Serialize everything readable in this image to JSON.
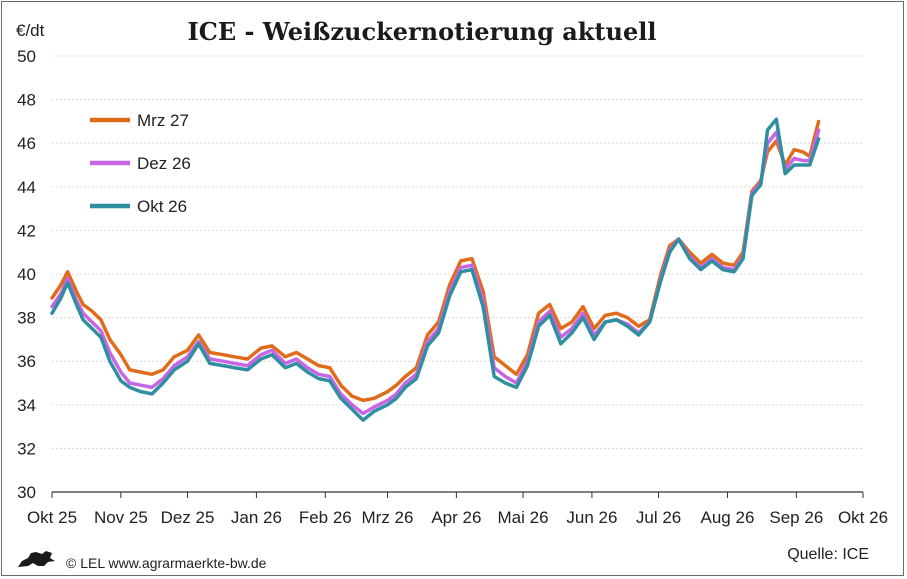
{
  "chart_data": {
    "type": "line",
    "title": "ICE - Weißzuckernotierung aktuell",
    "ylabel": "€/dt",
    "ylim": [
      30,
      50
    ],
    "yticks": [
      30,
      32,
      34,
      36,
      38,
      40,
      42,
      44,
      46,
      48,
      50
    ],
    "xticks": [
      "Okt 25",
      "Nov 25",
      "Dez 25",
      "Jan 26",
      "Feb 26",
      "Mrz 26",
      "Apr 26",
      "Mai 26",
      "Jun 26",
      "Jul 26",
      "Aug 26",
      "Sep 26",
      "Okt 26"
    ],
    "grid": "horizontal",
    "legend_position": "top-left",
    "x": [
      "2025-10-01",
      "2025-10-05",
      "2025-10-08",
      "2025-10-12",
      "2025-10-15",
      "2025-10-19",
      "2025-10-23",
      "2025-10-27",
      "2025-11-01",
      "2025-11-05",
      "2025-11-10",
      "2025-11-15",
      "2025-11-20",
      "2025-11-25",
      "2025-12-01",
      "2025-12-06",
      "2025-12-11",
      "2025-12-17",
      "2025-12-22",
      "2025-12-28",
      "2026-01-03",
      "2026-01-08",
      "2026-01-14",
      "2026-01-19",
      "2026-01-24",
      "2026-01-29",
      "2026-02-03",
      "2026-02-08",
      "2026-02-13",
      "2026-02-18",
      "2026-02-23",
      "2026-03-01",
      "2026-03-05",
      "2026-03-09",
      "2026-03-14",
      "2026-03-19",
      "2026-03-24",
      "2026-03-29",
      "2026-04-03",
      "2026-04-08",
      "2026-04-13",
      "2026-04-18",
      "2026-04-23",
      "2026-04-28",
      "2026-05-03",
      "2026-05-08",
      "2026-05-13",
      "2026-05-18",
      "2026-05-23",
      "2026-05-28",
      "2026-06-02",
      "2026-06-07",
      "2026-06-12",
      "2026-06-17",
      "2026-06-22",
      "2026-06-27",
      "2026-07-02",
      "2026-07-06",
      "2026-07-10",
      "2026-07-15",
      "2026-07-20",
      "2026-07-25",
      "2026-07-30",
      "2026-08-04",
      "2026-08-08",
      "2026-08-12",
      "2026-08-16",
      "2026-08-19",
      "2026-08-23",
      "2026-08-27",
      "2026-08-31",
      "2026-09-04",
      "2026-09-07",
      "2026-09-11"
    ],
    "series": [
      {
        "name": "Mrz 27",
        "color": "#e06c1a",
        "values": [
          38.9,
          39.5,
          40.1,
          39.2,
          38.6,
          38.3,
          37.9,
          37.0,
          36.3,
          35.6,
          35.5,
          35.4,
          35.6,
          36.2,
          36.5,
          37.2,
          36.4,
          36.3,
          36.2,
          36.1,
          36.6,
          36.7,
          36.2,
          36.4,
          36.1,
          35.8,
          35.7,
          34.9,
          34.4,
          34.2,
          34.3,
          34.6,
          34.9,
          35.3,
          35.7,
          37.2,
          37.8,
          39.5,
          40.6,
          40.7,
          39.2,
          36.2,
          35.8,
          35.4,
          36.3,
          38.2,
          38.6,
          37.5,
          37.8,
          38.5,
          37.5,
          38.1,
          38.2,
          38.0,
          37.6,
          37.9,
          40.0,
          41.3,
          41.6,
          41.0,
          40.5,
          40.9,
          40.5,
          40.4,
          41.0,
          43.8,
          44.3,
          45.6,
          46.1,
          45.0,
          45.7,
          45.6,
          45.4,
          47.0
        ]
      },
      {
        "name": "Dez 26",
        "color": "#c865e6",
        "values": [
          38.5,
          39.1,
          39.8,
          38.8,
          38.2,
          37.8,
          37.4,
          36.4,
          35.5,
          35.0,
          34.9,
          34.8,
          35.2,
          35.8,
          36.2,
          36.9,
          36.1,
          36.0,
          35.9,
          35.8,
          36.3,
          36.5,
          35.9,
          36.1,
          35.7,
          35.4,
          35.3,
          34.5,
          34.0,
          33.6,
          33.9,
          34.2,
          34.5,
          35.0,
          35.4,
          36.9,
          37.5,
          39.2,
          40.3,
          40.4,
          38.8,
          35.7,
          35.3,
          35.0,
          36.0,
          37.8,
          38.3,
          37.1,
          37.5,
          38.2,
          37.2,
          37.8,
          37.9,
          37.7,
          37.3,
          37.8,
          39.8,
          41.1,
          41.6,
          40.8,
          40.3,
          40.7,
          40.3,
          40.2,
          40.8,
          43.7,
          44.2,
          46.0,
          46.5,
          44.8,
          45.3,
          45.2,
          45.2,
          46.6
        ]
      },
      {
        "name": "Okt 26",
        "color": "#2f8fa0",
        "values": [
          38.2,
          38.9,
          39.6,
          38.6,
          37.9,
          37.5,
          37.1,
          36.0,
          35.1,
          34.8,
          34.6,
          34.5,
          35.0,
          35.6,
          36.0,
          36.8,
          35.9,
          35.8,
          35.7,
          35.6,
          36.1,
          36.3,
          35.7,
          35.9,
          35.5,
          35.2,
          35.1,
          34.3,
          33.8,
          33.3,
          33.7,
          34.0,
          34.3,
          34.8,
          35.2,
          36.7,
          37.3,
          39.0,
          40.1,
          40.2,
          38.5,
          35.3,
          35.0,
          34.8,
          35.8,
          37.6,
          38.1,
          36.8,
          37.3,
          38.0,
          37.0,
          37.8,
          37.9,
          37.6,
          37.2,
          37.8,
          39.7,
          41.0,
          41.6,
          40.7,
          40.2,
          40.6,
          40.2,
          40.1,
          40.7,
          43.6,
          44.1,
          46.6,
          47.1,
          44.6,
          45.0,
          45.0,
          45.0,
          46.2
        ]
      }
    ]
  },
  "footer": {
    "credit": "© LEL www.agrarmaerkte-bw.de",
    "source": "Quelle: ICE"
  }
}
